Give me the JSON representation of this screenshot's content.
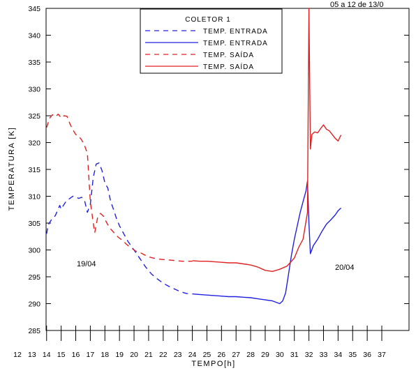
{
  "chart_data": {
    "type": "line",
    "title": "",
    "corner_text": "05 a 12 de 13/0",
    "xlabel": "TEMPO[h]",
    "ylabel": "TEMPERATURA [K]",
    "xlim": [
      12,
      37
    ],
    "ylim": [
      285,
      345
    ],
    "xticks": [
      12,
      13,
      14,
      15,
      16,
      17,
      18,
      19,
      20,
      21,
      22,
      23,
      24,
      25,
      26,
      27,
      28,
      29,
      30,
      31,
      32,
      33,
      34,
      35,
      36,
      37
    ],
    "yticks": [
      285,
      290,
      295,
      300,
      305,
      310,
      315,
      320,
      325,
      330,
      335,
      340,
      345
    ],
    "grid": false,
    "legend": {
      "title": "COLETOR 1",
      "placement": "top-center",
      "entries": [
        "TEMP. ENTRADA",
        "TEMP. ENTRADA",
        "TEMP. SAÍDA",
        "TEMP. SAÍDA"
      ]
    },
    "annotations": [
      {
        "text": "19/04",
        "x": 15.7,
        "y": 297.5
      },
      {
        "text": "20/04",
        "x": 32.3,
        "y": 296.8
      }
    ],
    "series": [
      {
        "name": "TEMP. ENTRADA",
        "color": "#2020e0",
        "style": "dashed",
        "x": [
          14.0,
          14.1,
          14.3,
          14.6,
          14.9,
          15.0,
          15.2,
          15.4,
          15.6,
          15.8,
          16.0,
          16.2,
          16.4,
          16.6,
          16.8,
          17.0,
          17.2,
          17.4,
          17.6,
          17.8,
          18.0,
          18.2,
          18.4,
          18.6,
          18.8,
          19.0,
          19.3,
          19.6,
          20.0,
          20.4,
          20.8,
          21.2,
          21.6,
          22.0,
          22.4,
          22.8,
          23.2,
          23.6,
          24.0
        ],
        "y": [
          303.0,
          304.6,
          305.5,
          306.4,
          308.3,
          307.6,
          308.5,
          309.3,
          309.6,
          310.0,
          309.9,
          309.6,
          309.8,
          309.3,
          307.0,
          308.5,
          313.5,
          316.0,
          316.2,
          314.8,
          312.5,
          311.5,
          309.0,
          307.5,
          305.8,
          304.5,
          303.0,
          301.5,
          300.0,
          298.4,
          296.8,
          295.5,
          294.6,
          293.8,
          293.2,
          292.7,
          292.2,
          291.9,
          291.8
        ]
      },
      {
        "name": "TEMP. ENTRADA",
        "color": "#2020e0",
        "style": "solid",
        "x": [
          24.0,
          24.5,
          25.0,
          25.5,
          26.0,
          26.5,
          27.0,
          27.5,
          28.0,
          28.5,
          29.0,
          29.5,
          29.8,
          30.0,
          30.2,
          30.4,
          30.6,
          30.8,
          31.0,
          31.2,
          31.4,
          31.6,
          31.8,
          31.9,
          32.0,
          32.1,
          32.3,
          32.6,
          32.9,
          33.2,
          33.5,
          33.8,
          34.0,
          34.2
        ],
        "y": [
          291.8,
          291.7,
          291.6,
          291.5,
          291.4,
          291.3,
          291.3,
          291.2,
          291.1,
          290.9,
          290.7,
          290.5,
          290.2,
          290.0,
          290.5,
          292.0,
          295.5,
          299.0,
          302.0,
          304.5,
          307.0,
          309.0,
          311.0,
          312.8,
          305.0,
          299.3,
          300.8,
          302.0,
          303.5,
          304.8,
          305.6,
          306.5,
          307.3,
          307.8
        ]
      },
      {
        "name": "TEMP. SAÍDA",
        "color": "#e02020",
        "style": "dashed",
        "x": [
          14.0,
          14.2,
          14.4,
          14.6,
          14.8,
          15.0,
          15.2,
          15.4,
          15.6,
          15.8,
          16.0,
          16.2,
          16.4,
          16.6,
          16.8,
          16.9,
          17.0,
          17.1,
          17.2,
          17.3,
          17.5,
          17.7,
          17.9,
          18.1,
          18.3,
          18.6,
          18.9,
          19.2,
          19.5,
          19.8,
          20.1,
          20.5,
          20.9,
          21.3,
          21.7,
          22.1,
          22.5,
          22.9,
          23.3,
          23.7,
          24.0
        ],
        "y": [
          322.8,
          324.5,
          325.2,
          324.8,
          325.3,
          324.6,
          325.0,
          324.9,
          323.5,
          322.4,
          321.5,
          321.2,
          320.5,
          319.5,
          318.0,
          313.5,
          309.0,
          307.0,
          305.0,
          303.2,
          306.0,
          306.8,
          306.3,
          305.2,
          304.2,
          303.3,
          302.4,
          301.8,
          301.0,
          300.4,
          299.8,
          299.4,
          298.8,
          298.5,
          298.3,
          298.2,
          298.1,
          298.0,
          297.9,
          297.9,
          297.9
        ]
      },
      {
        "name": "TEMP. SAÍDA",
        "color": "#e02020",
        "style": "solid",
        "x": [
          24.0,
          24.5,
          25.0,
          25.5,
          26.0,
          26.5,
          27.0,
          27.5,
          28.0,
          28.5,
          29.0,
          29.5,
          30.0,
          30.5,
          31.0,
          31.3,
          31.6,
          31.9,
          32.0,
          32.1,
          32.2,
          32.4,
          32.6,
          32.8,
          33.0,
          33.2,
          33.4,
          33.6,
          33.8,
          34.0,
          34.2
        ],
        "y": [
          298.0,
          297.9,
          297.9,
          297.8,
          297.7,
          297.6,
          297.6,
          297.4,
          297.2,
          296.8,
          296.2,
          296.0,
          296.4,
          297.0,
          298.5,
          300.5,
          302.0,
          307.0,
          345.0,
          318.8,
          321.5,
          322.0,
          321.8,
          322.6,
          323.3,
          322.5,
          322.2,
          321.5,
          320.8,
          320.3,
          321.4
        ]
      }
    ]
  }
}
